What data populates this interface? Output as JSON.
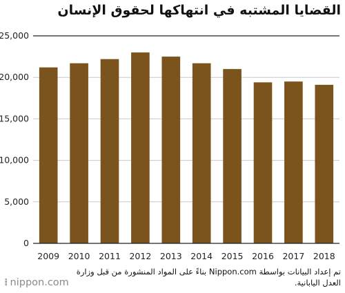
{
  "title": "القضايا المشتبه في انتهاكها لحقوق الإنسان",
  "source": "تم إعداد البيانات بواسطة Nippon.com بناءً على المواد المنشورة من قبل وزارة العدل اليابانية.",
  "logo": "nippon.com",
  "logo_mark": "⁞",
  "colors": {
    "bar": "#7a541c",
    "grid": "#c8c8c8",
    "axis": "#222222"
  },
  "chart_data": {
    "type": "bar",
    "title": "القضايا المشتبه في انتهاكها لحقوق الإنسان",
    "categories": [
      "2009",
      "2010",
      "2011",
      "2012",
      "2013",
      "2014",
      "2015",
      "2016",
      "2017",
      "2018"
    ],
    "values": [
      21200,
      21700,
      22200,
      23000,
      22500,
      21700,
      21000,
      19400,
      19500,
      19100
    ],
    "ylim": [
      0,
      25000
    ],
    "yticks": [
      "0",
      "5,000",
      "10,000",
      "15,000",
      "20,000",
      "25,000"
    ],
    "ytick_values": [
      0,
      5000,
      10000,
      15000,
      20000,
      25000
    ],
    "grid": true,
    "xlabel": "",
    "ylabel": ""
  }
}
